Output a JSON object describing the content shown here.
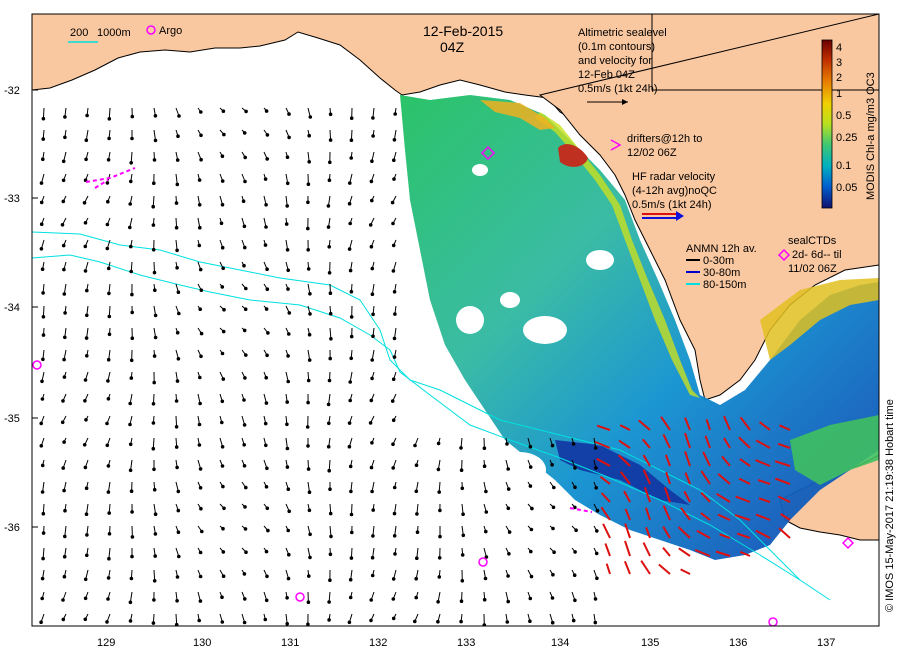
{
  "title": {
    "date": "12-Feb-2015",
    "time": "04Z"
  },
  "scale_bar": {
    "label_a": "200",
    "label_b": "1000m"
  },
  "argo": {
    "label": "Argo"
  },
  "altimetry": {
    "lines": [
      "Altimetric sealevel",
      "(0.1m contours)",
      "and velocity for",
      "12-Feb 04Z",
      "0.5m/s (1kt 24h)"
    ]
  },
  "drifters": {
    "lines": [
      "drifters@12h to",
      "12/02 06Z"
    ]
  },
  "hf_radar": {
    "lines": [
      "HF radar velocity",
      "(4-12h avg)noQC",
      "0.5m/s (1kt 24h)"
    ]
  },
  "anmn": {
    "title": "ANMN 12h av.",
    "items": [
      {
        "label": "0-30m",
        "color": "#000000"
      },
      {
        "label": "30-80m",
        "color": "#0000cc"
      },
      {
        "label": "80-150m",
        "color": "#00e0e0"
      }
    ]
  },
  "seal_ctds": {
    "lines": [
      "sealCTDs",
      "2d- 6d-- til",
      "11/02 06Z"
    ]
  },
  "colorbar": {
    "title": "MODIS Chl-a mg/m3 OC3",
    "ticks": [
      "4",
      "3",
      "2",
      "1",
      "0.5",
      "0.25",
      "0.1",
      "0.05"
    ],
    "colors": [
      "#6b0000",
      "#b03000",
      "#e07000",
      "#f0c000",
      "#d8e800",
      "#80d040",
      "#20c080",
      "#00a8c8",
      "#0070d8",
      "#0030a8",
      "#101070"
    ]
  },
  "credit": "© IMOS 15-May-2017 21:19:38 Hobart time",
  "axes": {
    "lon_ticks": [
      "129",
      "130",
      "131",
      "132",
      "133",
      "134",
      "135",
      "136",
      "137"
    ],
    "lat_ticks": [
      "-32",
      "-33",
      "-34",
      "-35",
      "-36"
    ]
  },
  "colors": {
    "land": "#fac8a0",
    "hf_radar": "#dd1010",
    "drifters": "#ff00ff",
    "contour": "#00e0e0"
  }
}
